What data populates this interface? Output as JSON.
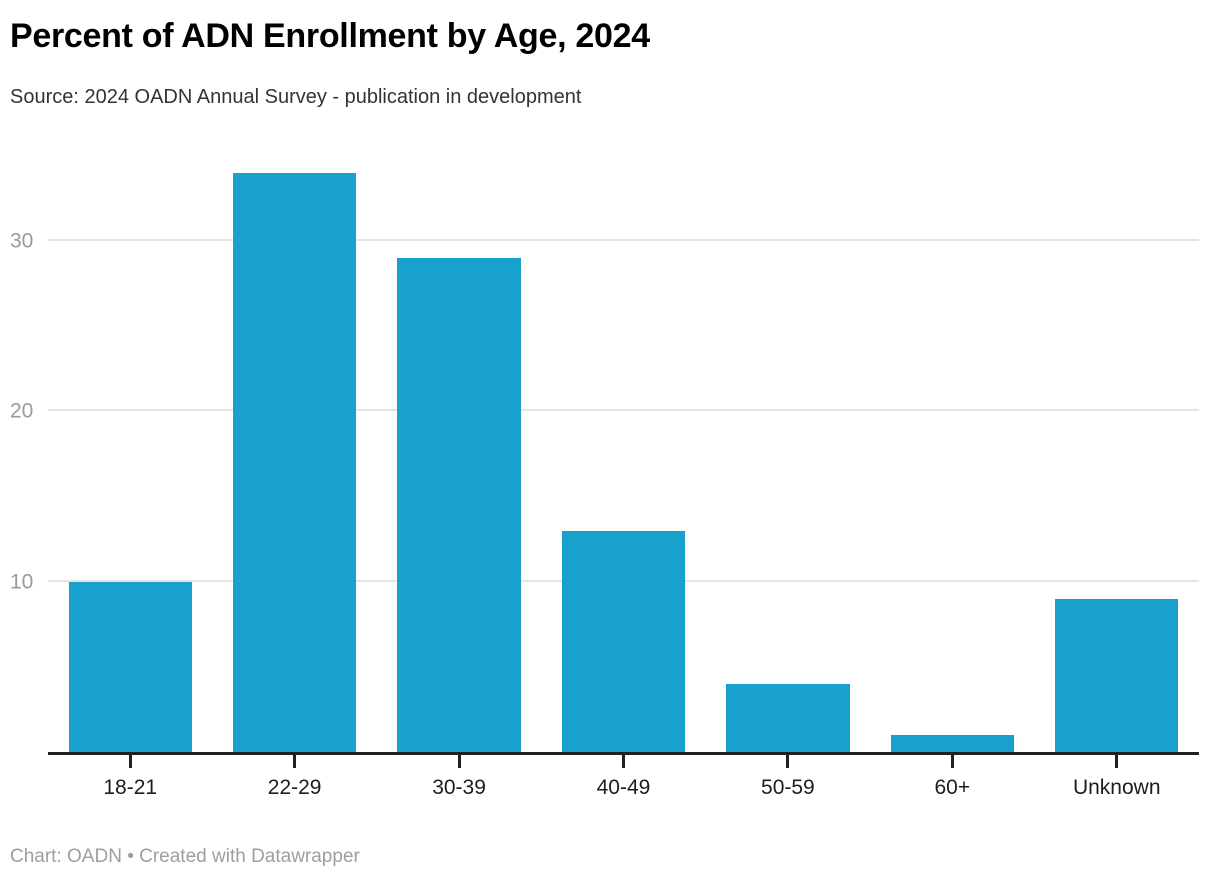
{
  "header": {
    "title": "Percent of ADN Enrollment by Age, 2024",
    "source": "Source: 2024 OADN Annual Survey - publication in development"
  },
  "footer": {
    "text": "Chart: OADN • Created with Datawrapper"
  },
  "colors": {
    "bar": "#18a1cc",
    "gridline": "#e4e4e4",
    "axis": "#212121",
    "ytick_label": "#9a9a9a",
    "xtick_label": "#1d1d1d",
    "title": "#000000",
    "source_text": "#333333",
    "footer_text": "#9e9e9e"
  },
  "chart_data": {
    "type": "bar",
    "title": "Percent of ADN Enrollment by Age, 2024",
    "subtitle": "Source: 2024 OADN Annual Survey - publication in development",
    "categories": [
      "18-21",
      "22-29",
      "30-39",
      "40-49",
      "50-59",
      "60+",
      "Unknown"
    ],
    "values": [
      10,
      34,
      29,
      13,
      4,
      1,
      9
    ],
    "xlabel": "",
    "ylabel": "",
    "yticks": [
      10,
      20,
      30
    ],
    "ylim": [
      0,
      35
    ],
    "grid": true,
    "legend": false,
    "units": "percent"
  }
}
